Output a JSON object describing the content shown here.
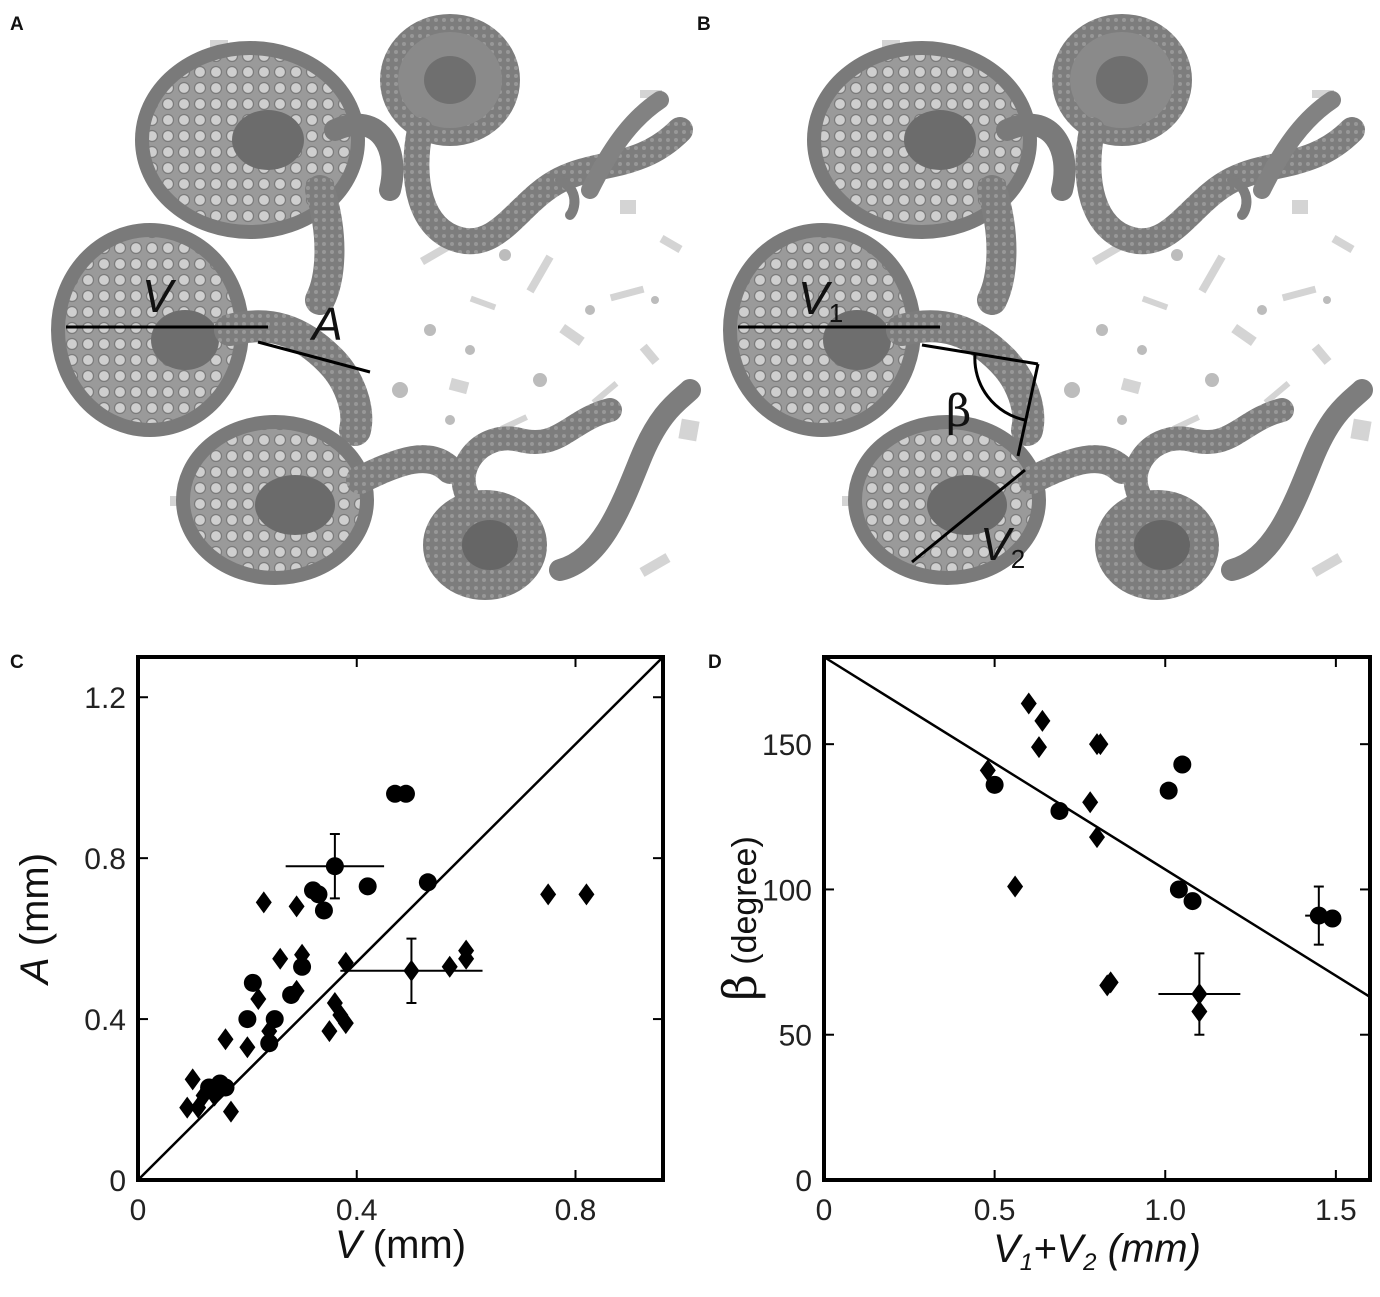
{
  "panels": {
    "a": {
      "label": "A",
      "measure_v": "V",
      "measure_a": "A"
    },
    "b": {
      "label": "B",
      "measure_v1": "V",
      "measure_v1_sub": "1",
      "measure_v2": "V",
      "measure_v2_sub": "2",
      "angle": "β"
    },
    "c": {
      "label": "C"
    },
    "d": {
      "label": "D"
    }
  },
  "chart_data": [
    {
      "panel": "C",
      "type": "scatter",
      "xlabel_symbol": "V",
      "xlabel_unit": " (mm)",
      "ylabel_symbol": "A",
      "ylabel_unit": " (mm)",
      "xlim": [
        0,
        0.96
      ],
      "ylim": [
        0,
        1.3
      ],
      "xticks": [
        "0",
        "0.4",
        "0.8"
      ],
      "yticks": [
        "0",
        "0.4",
        "0.8",
        "1.2"
      ],
      "xtick_values": [
        0,
        0.4,
        0.8
      ],
      "ytick_values": [
        0,
        0.4,
        0.8,
        1.2
      ],
      "grid": false,
      "reference_line": {
        "kind": "identity",
        "from": [
          0,
          0
        ],
        "to": [
          0.96,
          1.3
        ]
      },
      "series": [
        {
          "marker": "circle",
          "points": [
            [
              0.13,
              0.23
            ],
            [
              0.15,
              0.24
            ],
            [
              0.16,
              0.23
            ],
            [
              0.2,
              0.4
            ],
            [
              0.21,
              0.49
            ],
            [
              0.24,
              0.34
            ],
            [
              0.25,
              0.4
            ],
            [
              0.28,
              0.46
            ],
            [
              0.3,
              0.53
            ],
            [
              0.32,
              0.72
            ],
            [
              0.33,
              0.71
            ],
            [
              0.34,
              0.67
            ],
            [
              0.42,
              0.73
            ],
            [
              0.47,
              0.96
            ],
            [
              0.49,
              0.96
            ],
            [
              0.53,
              0.74
            ]
          ]
        },
        {
          "marker": "diamond",
          "points": [
            [
              0.09,
              0.18
            ],
            [
              0.1,
              0.25
            ],
            [
              0.11,
              0.18
            ],
            [
              0.12,
              0.21
            ],
            [
              0.14,
              0.21
            ],
            [
              0.16,
              0.35
            ],
            [
              0.17,
              0.17
            ],
            [
              0.2,
              0.33
            ],
            [
              0.22,
              0.45
            ],
            [
              0.23,
              0.69
            ],
            [
              0.24,
              0.37
            ],
            [
              0.26,
              0.55
            ],
            [
              0.29,
              0.47
            ],
            [
              0.29,
              0.68
            ],
            [
              0.3,
              0.56
            ],
            [
              0.35,
              0.37
            ],
            [
              0.36,
              0.44
            ],
            [
              0.37,
              0.41
            ],
            [
              0.38,
              0.54
            ],
            [
              0.38,
              0.39
            ],
            [
              0.57,
              0.53
            ],
            [
              0.6,
              0.55
            ],
            [
              0.6,
              0.57
            ],
            [
              0.75,
              0.71
            ],
            [
              0.82,
              0.71
            ]
          ]
        }
      ],
      "error_bars": [
        {
          "marker": "circle",
          "x": 0.36,
          "y": 0.78,
          "xerr": 0.09,
          "yerr": 0.08
        },
        {
          "marker": "diamond",
          "x": 0.5,
          "y": 0.52,
          "xerr": 0.13,
          "yerr": 0.08
        }
      ]
    },
    {
      "panel": "D",
      "type": "scatter",
      "xlabel_v1": "V",
      "xlabel_sub1": "1",
      "xlabel_plus": "+",
      "xlabel_v2": "V",
      "xlabel_sub2": "2",
      "xlabel_unit": " (mm)",
      "ylabel_symbol": "β",
      "ylabel_unit": " (degree)",
      "xlim": [
        0,
        1.6
      ],
      "ylim": [
        0,
        180
      ],
      "xticks": [
        "0",
        "0.5",
        "1.0",
        "1.5"
      ],
      "yticks": [
        "0",
        "50",
        "100",
        "150"
      ],
      "xtick_values": [
        0,
        0.5,
        1.0,
        1.5
      ],
      "ytick_values": [
        0,
        50,
        100,
        150
      ],
      "grid": false,
      "fit_line": {
        "from": [
          0,
          180
        ],
        "to": [
          1.6,
          63
        ]
      },
      "series": [
        {
          "marker": "circle",
          "points": [
            [
              0.5,
              136
            ],
            [
              0.69,
              127
            ],
            [
              1.01,
              134
            ],
            [
              1.05,
              143
            ],
            [
              1.04,
              100
            ],
            [
              1.08,
              96
            ],
            [
              1.49,
              90
            ]
          ]
        },
        {
          "marker": "diamond",
          "points": [
            [
              0.48,
              141
            ],
            [
              0.56,
              101
            ],
            [
              0.6,
              164
            ],
            [
              0.63,
              149
            ],
            [
              0.64,
              158
            ],
            [
              0.78,
              130
            ],
            [
              0.8,
              150
            ],
            [
              0.8,
              118
            ],
            [
              0.81,
              150
            ],
            [
              0.83,
              67
            ],
            [
              0.84,
              68
            ],
            [
              1.1,
              58
            ]
          ]
        }
      ],
      "error_bars": [
        {
          "marker": "circle",
          "x": 1.45,
          "y": 91,
          "xerr": 0.04,
          "yerr": 10
        },
        {
          "marker": "diamond",
          "x": 1.1,
          "y": 64,
          "xerr": 0.12,
          "yerr": 14
        }
      ]
    }
  ]
}
